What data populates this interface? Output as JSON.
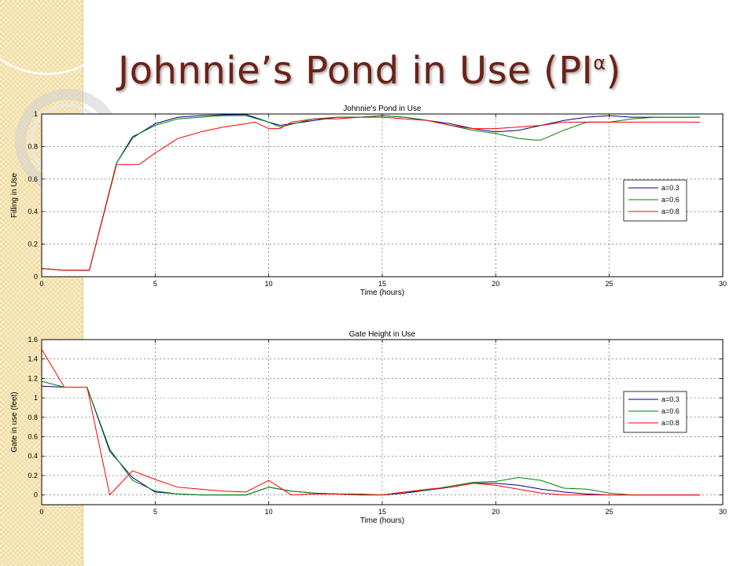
{
  "slide": {
    "title_main": "Johnnie’s Pond in Use (PI",
    "title_sup": "α",
    "title_end": ")"
  },
  "chart_data": [
    {
      "type": "line",
      "title": "Johnnie's Pond in Use",
      "xlabel": "Time (hours)",
      "ylabel": "Filling in Use",
      "xlim": [
        0,
        30
      ],
      "ylim": [
        0,
        1
      ],
      "xticks": [
        0,
        5,
        10,
        15,
        20,
        25,
        30
      ],
      "yticks": [
        0,
        0.2,
        0.4,
        0.6,
        0.8,
        1
      ],
      "grid": true,
      "legend_position": "right",
      "series": [
        {
          "name": "a=0.3",
          "color": "#00008b",
          "x": [
            0,
            1,
            2.1,
            3.3,
            4,
            4.3,
            5,
            6,
            7,
            8,
            9,
            10,
            10.5,
            12,
            13,
            14,
            15,
            16,
            17,
            18,
            19,
            20,
            21,
            22,
            23,
            24,
            25,
            26,
            27,
            28,
            29
          ],
          "y": [
            0.05,
            0.04,
            0.04,
            0.7,
            0.86,
            0.88,
            0.94,
            0.98,
            0.99,
            0.995,
            0.997,
            0.95,
            0.93,
            0.96,
            0.98,
            0.98,
            0.99,
            0.98,
            0.96,
            0.94,
            0.91,
            0.89,
            0.9,
            0.93,
            0.96,
            0.98,
            0.99,
            0.98,
            0.98,
            0.98,
            0.98
          ]
        },
        {
          "name": "a=0.6",
          "color": "#008000",
          "x": [
            0,
            1,
            2.1,
            3.3,
            4,
            4.3,
            5,
            6,
            7,
            8,
            9,
            10,
            10.5,
            12,
            13,
            14,
            15,
            16,
            17,
            18,
            19,
            20,
            21,
            21.7,
            22,
            23,
            24,
            25,
            26,
            27,
            28,
            29
          ],
          "y": [
            0.05,
            0.04,
            0.04,
            0.7,
            0.85,
            0.88,
            0.93,
            0.97,
            0.98,
            0.99,
            0.99,
            0.95,
            0.92,
            0.97,
            0.98,
            0.98,
            0.99,
            0.98,
            0.96,
            0.93,
            0.9,
            0.88,
            0.85,
            0.84,
            0.84,
            0.9,
            0.95,
            0.95,
            0.97,
            0.98,
            0.98,
            0.98
          ]
        },
        {
          "name": "a=0.8",
          "color": "#ff0000",
          "x": [
            0,
            1,
            2.1,
            3.3,
            4,
            4.3,
            5,
            6,
            7,
            8,
            9,
            9.4,
            10,
            10.5,
            11,
            12,
            13,
            14,
            15,
            16,
            17,
            18,
            19,
            20,
            21,
            22,
            23,
            24,
            25,
            26,
            27,
            28,
            29
          ],
          "y": [
            0.05,
            0.04,
            0.04,
            0.69,
            0.69,
            0.69,
            0.76,
            0.85,
            0.89,
            0.92,
            0.94,
            0.95,
            0.91,
            0.91,
            0.95,
            0.97,
            0.97,
            0.98,
            0.98,
            0.97,
            0.96,
            0.93,
            0.91,
            0.91,
            0.92,
            0.93,
            0.95,
            0.95,
            0.95,
            0.95,
            0.95,
            0.95,
            0.95
          ]
        }
      ]
    },
    {
      "type": "line",
      "title": "Gate Height in Use",
      "xlabel": "Time (hours)",
      "ylabel": "Gate in use (feet)",
      "xlim": [
        0,
        30
      ],
      "ylim": [
        -0.1,
        1.6
      ],
      "xticks": [
        0,
        5,
        10,
        15,
        20,
        25,
        30
      ],
      "yticks": [
        0,
        0.2,
        0.4,
        0.6,
        0.8,
        1,
        1.2,
        1.4,
        1.6
      ],
      "grid": true,
      "legend_position": "right",
      "series": [
        {
          "name": "a=0.3",
          "color": "#00008b",
          "x": [
            0,
            1,
            2,
            3,
            4,
            5,
            6,
            7,
            8,
            9,
            10,
            11,
            12,
            13,
            14,
            15,
            16,
            17,
            18,
            19,
            20,
            21,
            22,
            23,
            24,
            25,
            26,
            27,
            28,
            29
          ],
          "y": [
            1.12,
            1.11,
            1.11,
            0.45,
            0.18,
            0.03,
            0.01,
            0.0,
            0.0,
            0.0,
            0.08,
            0.04,
            0.02,
            0.01,
            0.0,
            0.0,
            0.02,
            0.05,
            0.08,
            0.12,
            0.12,
            0.1,
            0.06,
            0.03,
            0.01,
            0.0,
            0.0,
            0.0,
            0.0,
            0.0
          ]
        },
        {
          "name": "a=0.6",
          "color": "#008000",
          "x": [
            0,
            1,
            2,
            3,
            4,
            5,
            6,
            7,
            8,
            9,
            10,
            11,
            12,
            13,
            14,
            15,
            16,
            17,
            18,
            19,
            20,
            21,
            22,
            23,
            24,
            25,
            26,
            27,
            28,
            29
          ],
          "y": [
            1.17,
            1.11,
            1.11,
            0.47,
            0.15,
            0.04,
            0.01,
            0.0,
            0.0,
            0.0,
            0.08,
            0.04,
            0.02,
            0.01,
            0.01,
            0.0,
            0.03,
            0.05,
            0.09,
            0.13,
            0.14,
            0.18,
            0.15,
            0.07,
            0.06,
            0.02,
            0.0,
            0.0,
            0.0,
            0.0
          ]
        },
        {
          "name": "a=0.8",
          "color": "#ff0000",
          "x": [
            0,
            1,
            2,
            3,
            4,
            5,
            6,
            7,
            8,
            9,
            10,
            11,
            12,
            13,
            14,
            15,
            16,
            17,
            18,
            19,
            20,
            21,
            22,
            23,
            24,
            25,
            26,
            27,
            28,
            29
          ],
          "y": [
            1.5,
            1.11,
            1.11,
            0.0,
            0.25,
            0.16,
            0.08,
            0.06,
            0.04,
            0.03,
            0.15,
            0.0,
            0.01,
            0.01,
            0.0,
            0.0,
            0.03,
            0.06,
            0.08,
            0.12,
            0.1,
            0.06,
            0.02,
            0.0,
            0.0,
            0.0,
            0.0,
            0.0,
            0.0,
            0.0
          ]
        }
      ]
    }
  ]
}
